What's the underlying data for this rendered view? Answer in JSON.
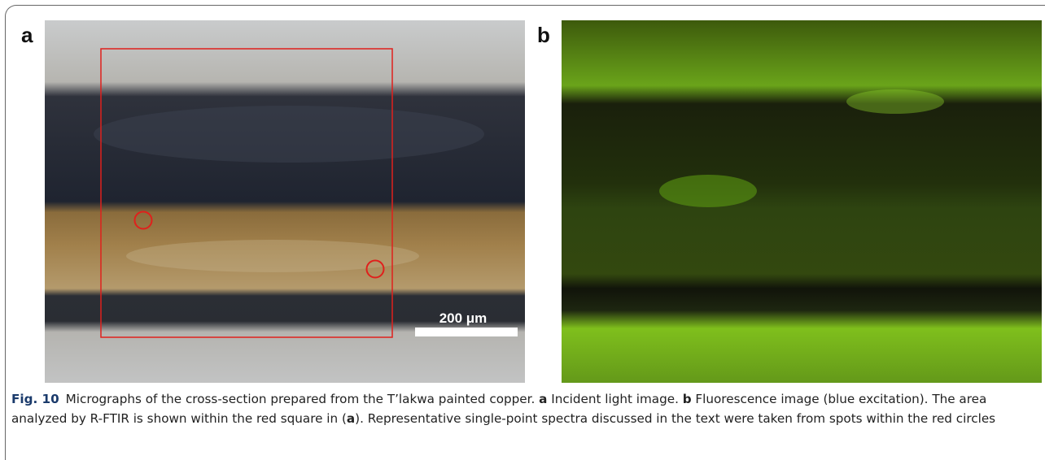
{
  "panels": [
    {
      "label": "a",
      "scale_bar": "200 μm"
    },
    {
      "label": "b"
    }
  ],
  "caption": {
    "label": "Fig. 10",
    "runs": [
      {
        "text": "Micrographs of the cross-section prepared from the T’lakwa painted copper. ",
        "bold": false
      },
      {
        "text": "a",
        "bold": true
      },
      {
        "text": " Incident light image. ",
        "bold": false
      },
      {
        "text": "b",
        "bold": true
      },
      {
        "text": " Fluorescence image (blue excitation). The area analyzed by R-FTIR is shown within the red square in (",
        "bold": false
      },
      {
        "text": "a",
        "bold": true
      },
      {
        "text": "). Representative single-point spectra discussed in the text were taken from spots within the red circles",
        "bold": false
      }
    ]
  }
}
